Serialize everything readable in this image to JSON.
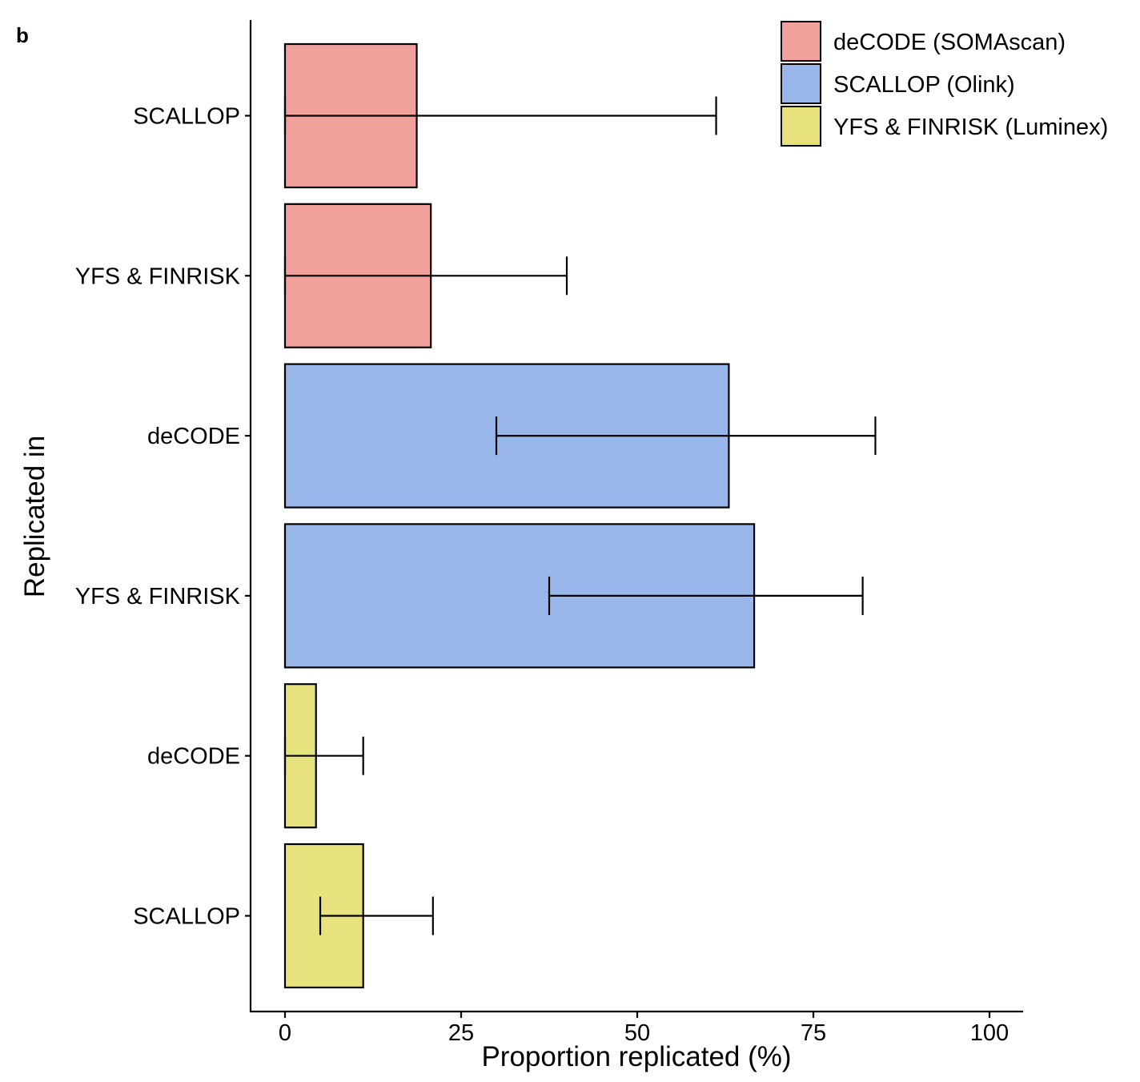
{
  "panel_label": "b",
  "chart_data": {
    "type": "bar",
    "orientation": "horizontal",
    "xlabel": "Proportion replicated (%)",
    "ylabel": "Replicated in",
    "xlim": [
      -5,
      105
    ],
    "x_ticks": [
      0,
      25,
      50,
      75,
      100
    ],
    "grid": false,
    "legend_position": "top-right",
    "legend": [
      {
        "name": "deCODE (SOMAscan)",
        "color": "#F1A09B"
      },
      {
        "name": "SCALLOP (Olink)",
        "color": "#99B6EB"
      },
      {
        "name": "YFS & FINRISK (Luminex)",
        "color": "#E6E37F"
      }
    ],
    "bars": [
      {
        "category": "SCALLOP",
        "series": "deCODE (SOMAscan)",
        "value": 18.7,
        "ci_low": 0,
        "ci_high": 61.2
      },
      {
        "category": "YFS & FINRISK",
        "series": "deCODE (SOMAscan)",
        "value": 20.7,
        "ci_low": 0,
        "ci_high": 40.0
      },
      {
        "category": "deCODE",
        "series": "SCALLOP (Olink)",
        "value": 63.0,
        "ci_low": 30.0,
        "ci_high": 83.8
      },
      {
        "category": "YFS & FINRISK",
        "series": "SCALLOP (Olink)",
        "value": 66.6,
        "ci_low": 37.5,
        "ci_high": 82.0
      },
      {
        "category": "deCODE",
        "series": "YFS & FINRISK (Luminex)",
        "value": 4.4,
        "ci_low": 0,
        "ci_high": 11.1
      },
      {
        "category": "SCALLOP",
        "series": "YFS & FINRISK (Luminex)",
        "value": 11.1,
        "ci_low": 5.0,
        "ci_high": 21.0
      }
    ]
  }
}
